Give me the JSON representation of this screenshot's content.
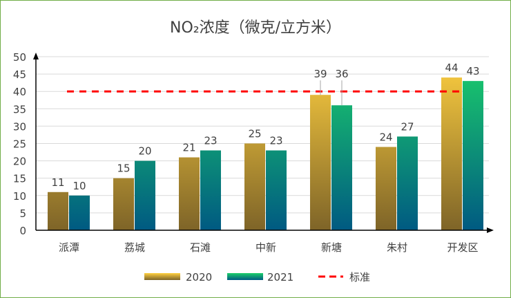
{
  "chart_data": {
    "type": "bar",
    "title": "NO₂浓度（微克/立方米）",
    "categories": [
      "派潭",
      "荔城",
      "石滩",
      "中新",
      "新塘",
      "朱村",
      "开发区"
    ],
    "series": [
      {
        "name": "2020",
        "values": [
          11,
          15,
          21,
          25,
          39,
          24,
          44
        ],
        "colors": [
          "#FFD040",
          "#7E6428"
        ]
      },
      {
        "name": "2021",
        "values": [
          10,
          20,
          23,
          23,
          36,
          27,
          43
        ],
        "colors": [
          "#1CD06A",
          "#005A82"
        ]
      }
    ],
    "reference_line": {
      "name": "标准",
      "value": 40,
      "color": "#FF0000",
      "style": "dashed"
    },
    "ylim": [
      0,
      50
    ],
    "yticks": [
      0,
      5,
      10,
      15,
      20,
      25,
      30,
      35,
      40,
      45,
      50
    ],
    "grid": true,
    "legend": "bottom",
    "xlabel": "",
    "ylabel": ""
  }
}
